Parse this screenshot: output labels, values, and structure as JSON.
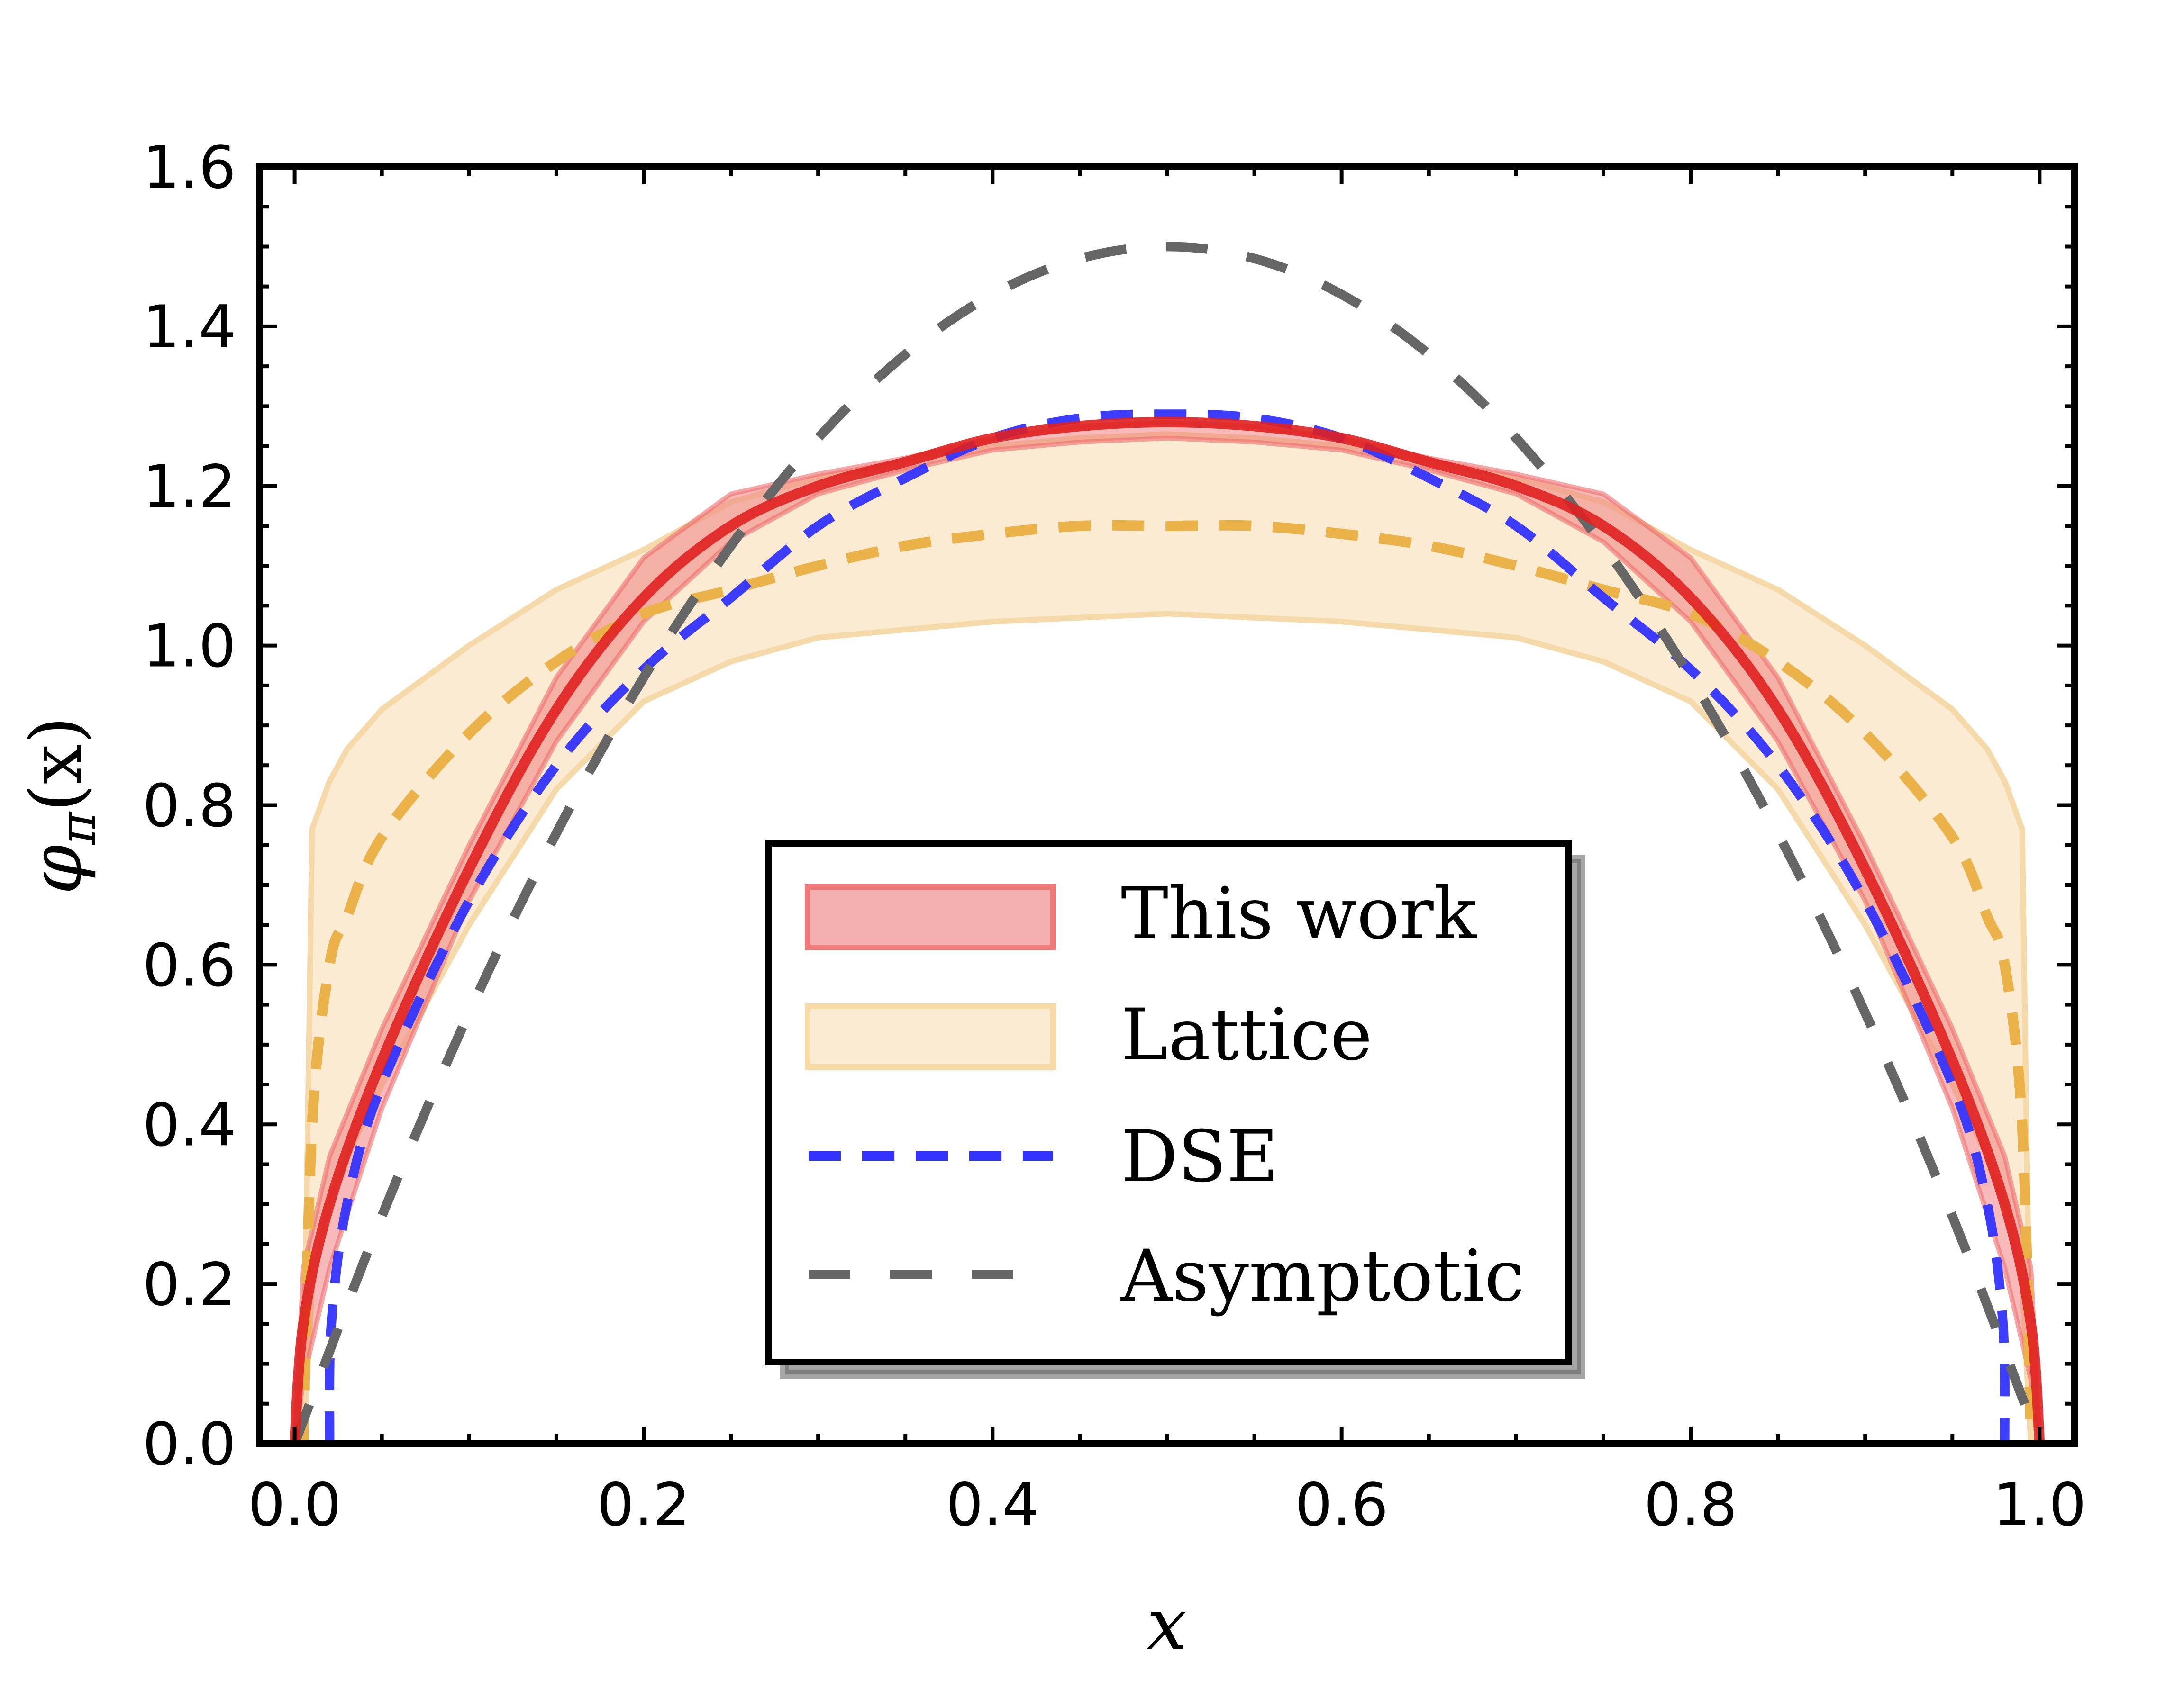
{
  "chart_data": {
    "type": "line",
    "title": "",
    "xlabel": "x",
    "ylabel": "φπ(x)",
    "ylabel_main": "φ",
    "ylabel_sub": "π",
    "ylabel_tail": "(x)",
    "xlim": [
      -0.02,
      1.02
    ],
    "ylim": [
      0.0,
      1.6
    ],
    "grid": false,
    "legend_position": "lower-center",
    "xticks": [
      0.0,
      0.2,
      0.4,
      0.6,
      0.8,
      1.0
    ],
    "xtick_labels": [
      "0.0",
      "0.2",
      "0.4",
      "0.6",
      "0.8",
      "1.0"
    ],
    "yticks": [
      0.0,
      0.2,
      0.4,
      0.6,
      0.8,
      1.0,
      1.2,
      1.4,
      1.6
    ],
    "ytick_labels": [
      "0.0",
      "0.2",
      "0.4",
      "0.6",
      "0.8",
      "1.0",
      "1.2",
      "1.4",
      "1.6"
    ],
    "minor_tick_step_x": 0.05,
    "minor_tick_step_y": 0.05,
    "symmetric_about": 0.5,
    "series": [
      {
        "name": "This work",
        "kind": "band+line",
        "color": "#e02020",
        "band_color": "#f08080",
        "x": [
          0.0,
          0.005,
          0.02,
          0.05,
          0.1,
          0.15,
          0.2,
          0.25,
          0.3,
          0.35,
          0.4,
          0.45,
          0.5
        ],
        "y": [
          0.0,
          0.15,
          0.3,
          0.48,
          0.72,
          0.92,
          1.06,
          1.15,
          1.2,
          1.23,
          1.26,
          1.275,
          1.28
        ],
        "upper": [
          0.0,
          0.22,
          0.36,
          0.52,
          0.75,
          0.96,
          1.11,
          1.19,
          1.215,
          1.235,
          1.26,
          1.275,
          1.28
        ],
        "lower": [
          0.0,
          0.08,
          0.22,
          0.42,
          0.68,
          0.88,
          1.03,
          1.13,
          1.19,
          1.22,
          1.245,
          1.255,
          1.26
        ]
      },
      {
        "name": "Lattice",
        "kind": "band+dashed",
        "color": "#ecb24a",
        "band_color": "#faebd2",
        "band_edge_color": "#f6d9a8",
        "x": [
          0.005,
          0.01,
          0.02,
          0.03,
          0.05,
          0.1,
          0.15,
          0.2,
          0.25,
          0.3,
          0.35,
          0.4,
          0.45,
          0.5
        ],
        "y": [
          0.0,
          0.4,
          0.6,
          0.66,
          0.76,
          0.89,
          0.98,
          1.04,
          1.07,
          1.1,
          1.125,
          1.14,
          1.15,
          1.15
        ],
        "upper": [
          0.02,
          0.77,
          0.83,
          0.87,
          0.92,
          1.0,
          1.07,
          1.12,
          1.18,
          1.21,
          1.23,
          1.25,
          1.26,
          1.265
        ],
        "lower": [
          0.0,
          0.2,
          0.3,
          0.36,
          0.45,
          0.65,
          0.82,
          0.93,
          0.98,
          1.01,
          1.02,
          1.03,
          1.035,
          1.04
        ]
      },
      {
        "name": "DSE",
        "kind": "dashed",
        "color": "#3333ff",
        "x": [
          0.02,
          0.021,
          0.03,
          0.05,
          0.1,
          0.15,
          0.2,
          0.25,
          0.3,
          0.35,
          0.4,
          0.45,
          0.5
        ],
        "y": [
          0.0,
          0.15,
          0.3,
          0.45,
          0.68,
          0.85,
          0.97,
          1.06,
          1.15,
          1.21,
          1.26,
          1.285,
          1.29
        ]
      },
      {
        "name": "Asymptotic",
        "kind": "dashed",
        "color": "#666666",
        "formula": "6x(1-x)",
        "x": [
          0.0,
          0.05,
          0.1,
          0.15,
          0.2,
          0.25,
          0.3,
          0.35,
          0.4,
          0.45,
          0.5
        ],
        "y": [
          0.0,
          0.285,
          0.54,
          0.765,
          0.96,
          1.125,
          1.26,
          1.365,
          1.44,
          1.485,
          1.5
        ]
      }
    ],
    "legend": [
      {
        "label": "This work",
        "marker": "patch",
        "series": 0
      },
      {
        "label": "Lattice",
        "marker": "patch",
        "series": 1
      },
      {
        "label": "DSE",
        "marker": "dashed-line",
        "series": 2
      },
      {
        "label": "Asymptotic",
        "marker": "dashed-line",
        "series": 3
      }
    ]
  }
}
